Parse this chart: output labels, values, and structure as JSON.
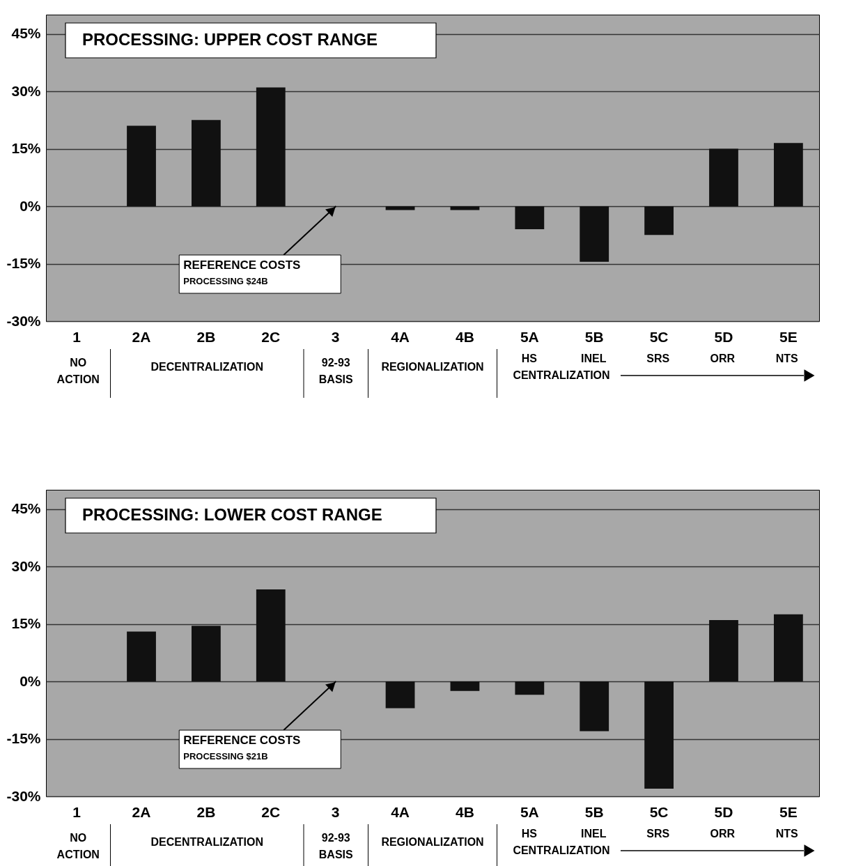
{
  "chart_data": [
    {
      "type": "bar",
      "title": "PROCESSING: UPPER COST RANGE",
      "categories": [
        "1",
        "2A",
        "2B",
        "2C",
        "3",
        "4A",
        "4B",
        "5A",
        "5B",
        "5C",
        "5D",
        "5E"
      ],
      "series": [
        {
          "color": "#111111",
          "values": [
            0,
            21,
            22.5,
            31,
            0,
            -1,
            -1,
            -6,
            -14.5,
            -7.5,
            15,
            16.5
          ]
        }
      ],
      "ylim": [
        -30,
        50
      ],
      "yticks": [
        {
          "value": -30,
          "label": "-30%"
        },
        {
          "value": -15,
          "label": "-15%"
        },
        {
          "value": 0,
          "label": "0%"
        },
        {
          "value": 15,
          "label": "15%"
        },
        {
          "value": 30,
          "label": "30%"
        },
        {
          "value": 45,
          "label": "45%"
        }
      ],
      "grid": "y",
      "annotations": [
        {
          "text": "REFERENCE COSTS\nPROCESSING $24B",
          "x": "3",
          "y": 0
        },
        "NO ACTION",
        "DECENTRALIZATION",
        "92-93 BASIS",
        "REGIONALIZATION",
        "HS",
        "INEL",
        "SRS",
        "ORR",
        "NTS",
        "CENTRALIZATION"
      ]
    },
    {
      "type": "bar",
      "title": "PROCESSING: LOWER COST RANGE",
      "categories": [
        "1",
        "2A",
        "2B",
        "2C",
        "3",
        "4A",
        "4B",
        "5A",
        "5B",
        "5C",
        "5D",
        "5E"
      ],
      "series": [
        {
          "color": "#111111",
          "values": [
            0,
            13,
            14.5,
            24,
            0,
            -7,
            -2.5,
            -3.5,
            -13,
            -28,
            16,
            17.5
          ]
        }
      ],
      "ylim": [
        -30,
        50
      ],
      "yticks": [
        {
          "value": -30,
          "label": "-30%"
        },
        {
          "value": -15,
          "label": "-15%"
        },
        {
          "value": 0,
          "label": "0%"
        },
        {
          "value": 15,
          "label": "15%"
        },
        {
          "value": 30,
          "label": "30%"
        },
        {
          "value": 45,
          "label": "45%"
        }
      ],
      "grid": "y",
      "annotations": [
        {
          "text": "REFERENCE COSTS\nPROCESSING $21B",
          "x": "3",
          "y": 0
        },
        "NO ACTION",
        "DECENTRALIZATION",
        "92-93 BASIS",
        "REGIONALIZATION",
        "HS",
        "INEL",
        "SRS",
        "ORR",
        "NTS",
        "CENTRALIZATION"
      ]
    }
  ]
}
